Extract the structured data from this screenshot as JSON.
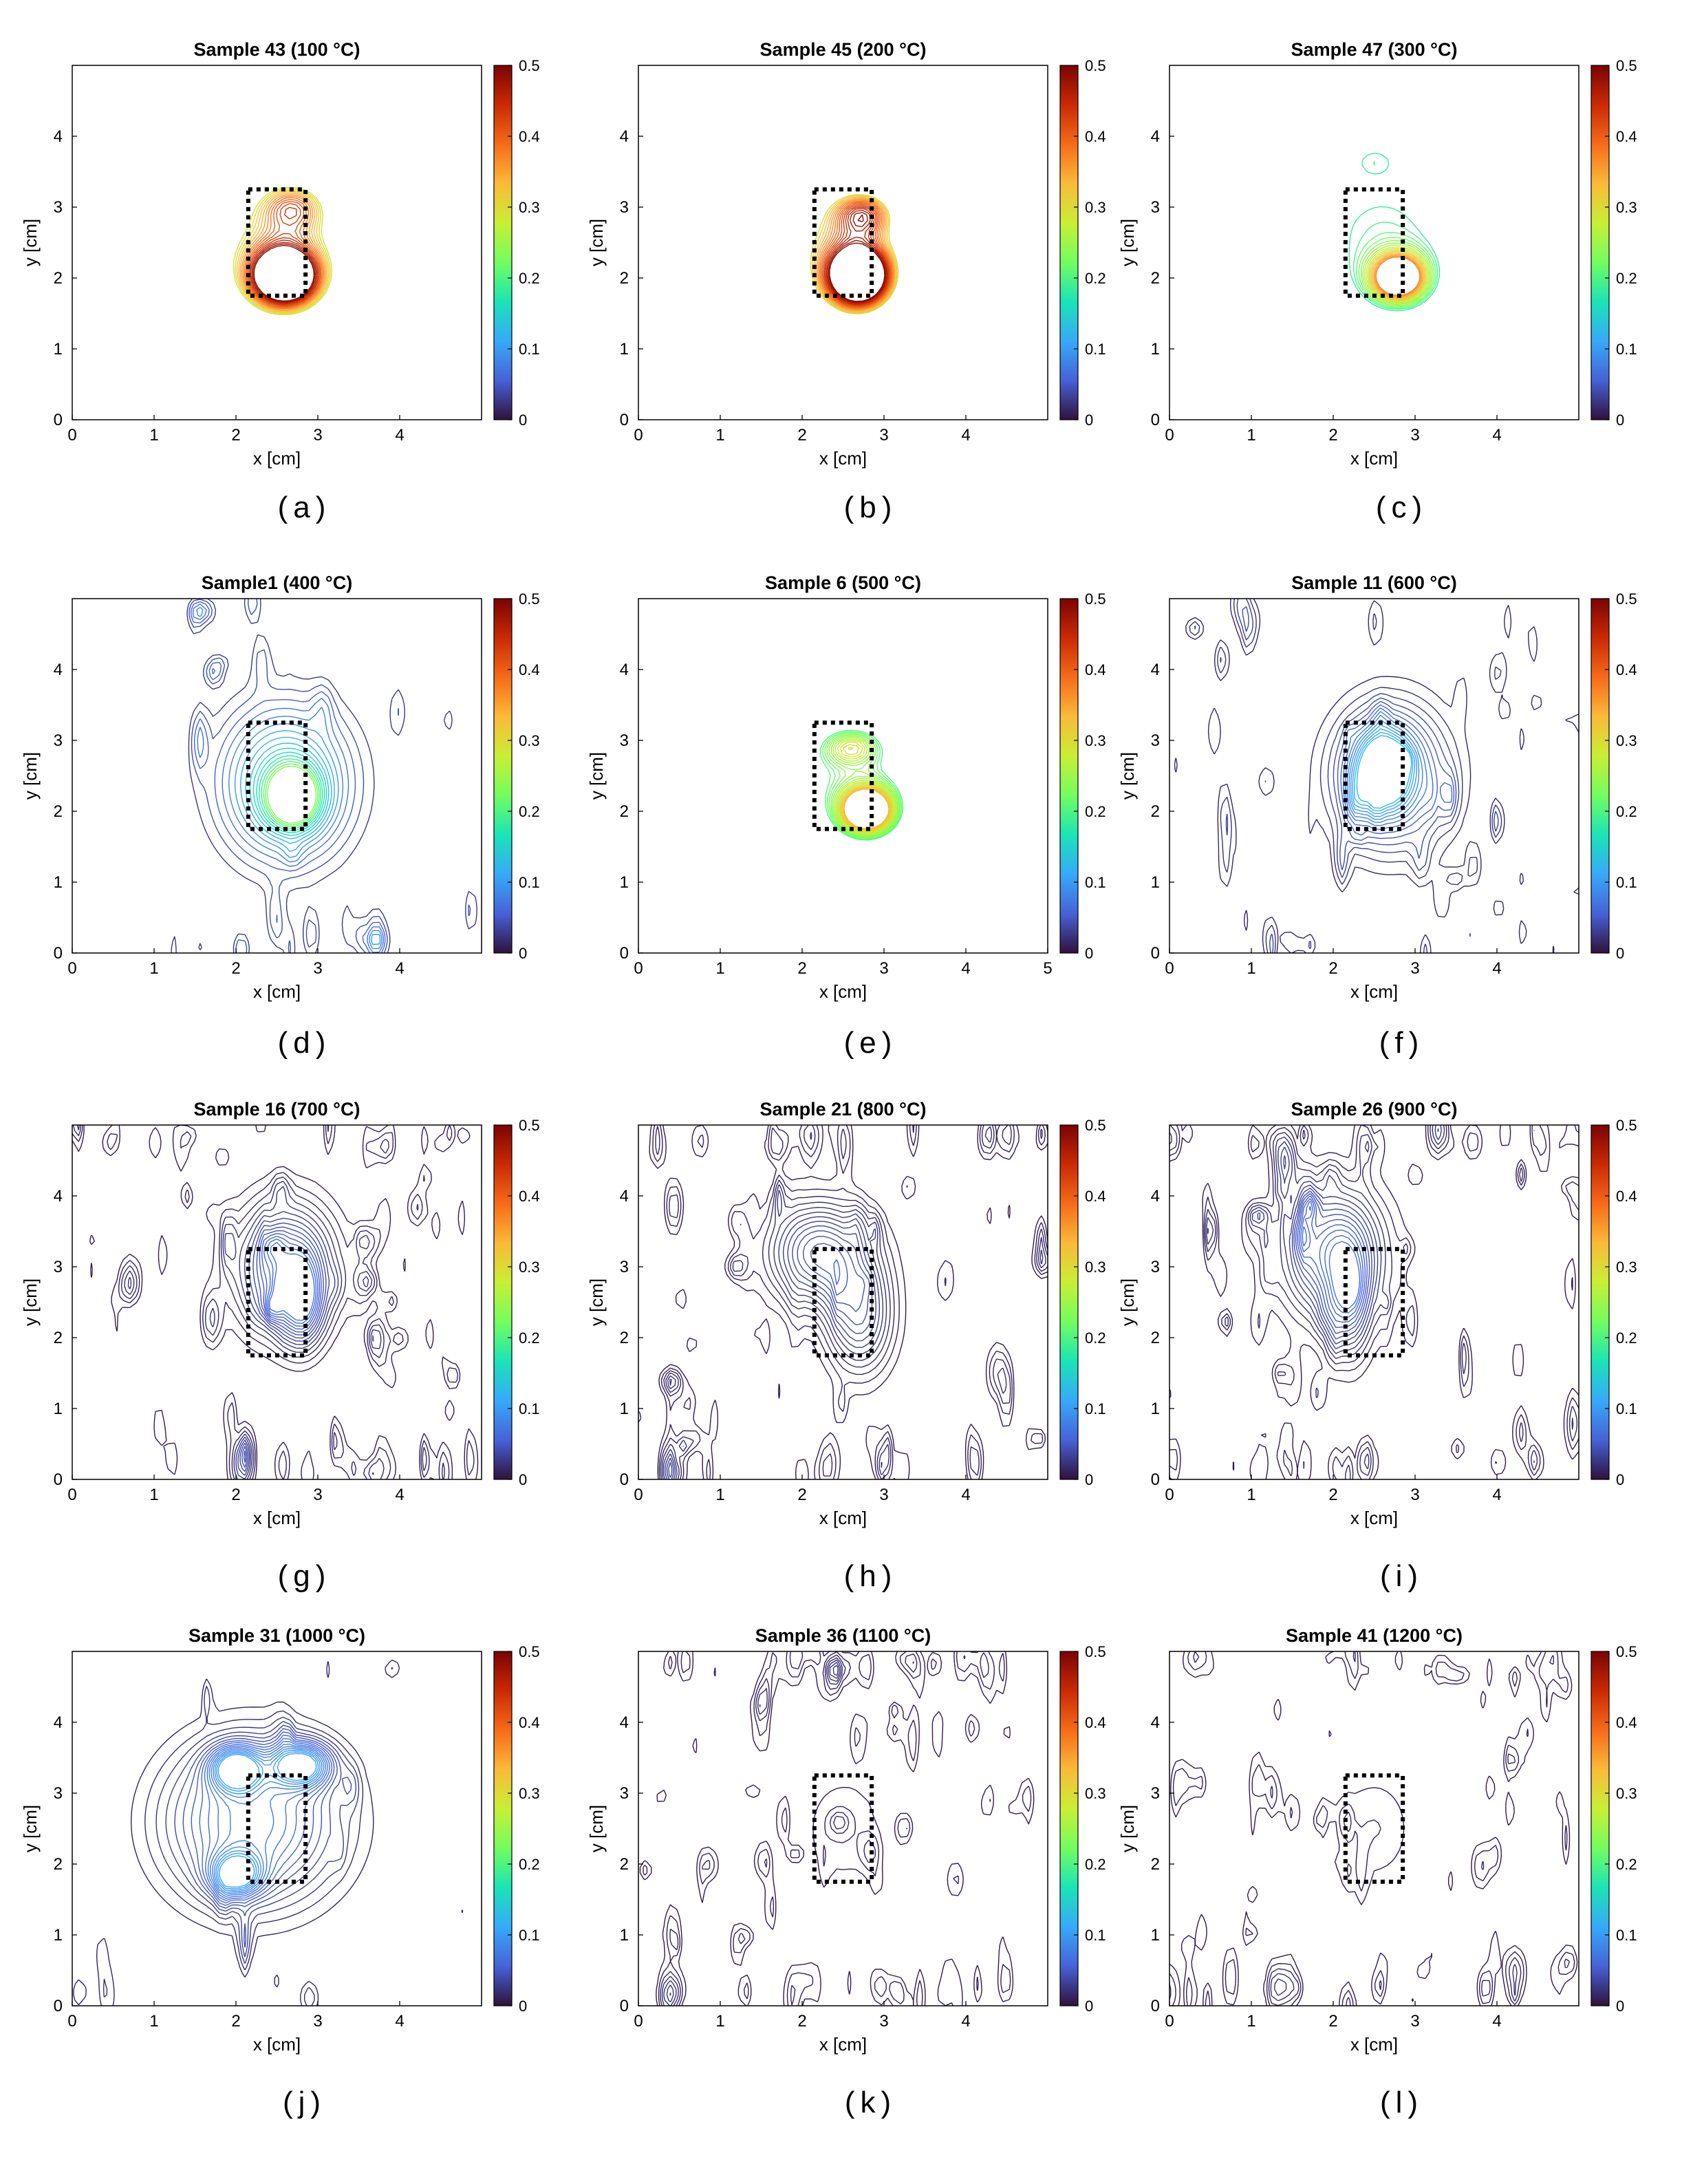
{
  "figure": {
    "colorbar_ticks": [
      "0.5",
      "0.4",
      "0.3",
      "0.2",
      "0.1",
      "0"
    ],
    "colormap_name": "turbo",
    "colormap": [
      "#30123b",
      "#4662d7",
      "#36aaf9",
      "#1ae4b6",
      "#72fe5e",
      "#c8ef34",
      "#faba39",
      "#f66b19",
      "#ca2a04",
      "#7a0403"
    ],
    "frame_color": "#000000",
    "marker_color": "#000000"
  },
  "chart_data": [
    {
      "type": "contour",
      "panel": "(a)",
      "title": "Sample 43 (100 °C)",
      "xlabel": "x [cm]",
      "ylabel": "y [cm]",
      "xlim": [
        0,
        5
      ],
      "ylim": [
        0,
        5
      ],
      "x_ticks": [
        "0",
        "1",
        "2",
        "3",
        "4"
      ],
      "y_ticks": [
        "0",
        "1",
        "2",
        "3",
        "4"
      ],
      "clim": [
        0,
        0.5
      ],
      "sample_box": {
        "x": [
          2.15,
          2.85
        ],
        "y": [
          1.75,
          3.25
        ]
      },
      "features": [
        {
          "x": 2.5,
          "y": 2.45,
          "sx": 1.1,
          "sy": 1.2,
          "v": 0.3
        },
        {
          "x": 2.7,
          "y": 3.0,
          "sx": 0.4,
          "sy": 0.35,
          "v": 0.2
        },
        {
          "x": 2.6,
          "y": 2.0,
          "sx": 0.45,
          "sy": 0.45,
          "v": 0.5
        }
      ],
      "level_min": 0.28,
      "level_max": 0.5,
      "contour_levels": 16,
      "noise": 0.0
    },
    {
      "type": "contour",
      "panel": "(b)",
      "title": "Sample 45 (200 °C)",
      "xlabel": "x [cm]",
      "ylabel": "y [cm]",
      "xlim": [
        0,
        5
      ],
      "ylim": [
        0,
        5
      ],
      "x_ticks": [
        "0",
        "1",
        "2",
        "3",
        "4"
      ],
      "y_ticks": [
        "0",
        "1",
        "2",
        "3",
        "4"
      ],
      "clim": [
        0,
        0.5
      ],
      "sample_box": {
        "x": [
          2.15,
          2.85
        ],
        "y": [
          1.75,
          3.25
        ]
      },
      "features": [
        {
          "x": 2.5,
          "y": 2.45,
          "sx": 1.0,
          "sy": 1.2,
          "v": 0.32
        },
        {
          "x": 2.75,
          "y": 2.9,
          "sx": 0.35,
          "sy": 0.3,
          "v": 0.22
        },
        {
          "x": 2.7,
          "y": 2.0,
          "sx": 0.4,
          "sy": 0.45,
          "v": 0.5
        }
      ],
      "level_min": 0.3,
      "level_max": 0.5,
      "contour_levels": 16,
      "noise": 0.0
    },
    {
      "type": "contour",
      "panel": "(c)",
      "title": "Sample 47 (300 °C)",
      "xlabel": "x [cm]",
      "ylabel": "y [cm]",
      "xlim": [
        0,
        5
      ],
      "ylim": [
        0,
        5
      ],
      "x_ticks": [
        "0",
        "1",
        "2",
        "3",
        "4"
      ],
      "y_ticks": [
        "0",
        "1",
        "2",
        "3",
        "4"
      ],
      "clim": [
        0,
        0.5
      ],
      "sample_box": {
        "x": [
          2.15,
          2.85
        ],
        "y": [
          1.75,
          3.25
        ]
      },
      "features": [
        {
          "x": 2.6,
          "y": 2.6,
          "sx": 1.4,
          "sy": 1.5,
          "v": 0.2
        },
        {
          "x": 2.5,
          "y": 3.7,
          "sx": 0.4,
          "sy": 0.3,
          "v": 0.08
        },
        {
          "x": 2.8,
          "y": 2.0,
          "sx": 0.35,
          "sy": 0.35,
          "v": 0.38
        }
      ],
      "level_min": 0.18,
      "level_max": 0.38,
      "contour_levels": 16,
      "noise": 0.0
    },
    {
      "type": "contour",
      "panel": "(d)",
      "title": "Sample1 (400 °C)",
      "xlabel": "x [cm]",
      "ylabel": "y [cm]",
      "xlim": [
        0,
        5
      ],
      "ylim": [
        0,
        5
      ],
      "x_ticks": [
        "0",
        "1",
        "2",
        "3",
        "4"
      ],
      "y_ticks": [
        "0",
        "1",
        "2",
        "3",
        "4"
      ],
      "clim": [
        0,
        0.5
      ],
      "sample_box": {
        "x": [
          2.15,
          2.85
        ],
        "y": [
          1.75,
          3.25
        ]
      },
      "features": [
        {
          "x": 2.6,
          "y": 2.4,
          "sx": 0.8,
          "sy": 1.1,
          "v": 0.17
        },
        {
          "x": 2.7,
          "y": 2.2,
          "sx": 0.3,
          "sy": 0.4,
          "v": 0.24
        }
      ],
      "level_min": 0.02,
      "level_max": 0.24,
      "contour_levels": 16,
      "noise": 0.25
    },
    {
      "type": "contour",
      "panel": "(e)",
      "title": "Sample 6 (500 °C)",
      "xlabel": "x [cm]",
      "ylabel": "y [cm]",
      "xlim": [
        0,
        5
      ],
      "ylim": [
        0,
        5
      ],
      "x_ticks": [
        "0",
        "1",
        "2",
        "3",
        "4",
        "5"
      ],
      "y_ticks": [
        "0",
        "1",
        "2",
        "3",
        "4"
      ],
      "clim": [
        0,
        0.5
      ],
      "sample_box": {
        "x": [
          2.15,
          2.85
        ],
        "y": [
          1.75,
          3.25
        ]
      },
      "features": [
        {
          "x": 2.6,
          "y": 2.5,
          "sx": 1.2,
          "sy": 1.3,
          "v": 0.2
        },
        {
          "x": 2.6,
          "y": 2.9,
          "sx": 0.35,
          "sy": 0.25,
          "v": 0.12
        },
        {
          "x": 2.8,
          "y": 2.0,
          "sx": 0.35,
          "sy": 0.35,
          "v": 0.32
        }
      ],
      "level_min": 0.2,
      "level_max": 0.34,
      "contour_levels": 16,
      "noise": 0.05
    },
    {
      "type": "contour",
      "panel": "(f)",
      "title": "Sample 11 (600 °C)",
      "xlabel": "x [cm]",
      "ylabel": "y [cm]",
      "xlim": [
        0,
        5
      ],
      "ylim": [
        0,
        5
      ],
      "x_ticks": [
        "0",
        "1",
        "2",
        "3",
        "4"
      ],
      "y_ticks": [
        "0",
        "1",
        "2",
        "3",
        "4"
      ],
      "clim": [
        0,
        0.5
      ],
      "sample_box": {
        "x": [
          2.15,
          2.85
        ],
        "y": [
          1.75,
          3.25
        ]
      },
      "features": [
        {
          "x": 2.7,
          "y": 2.5,
          "sx": 0.7,
          "sy": 1.0,
          "v": 0.1
        },
        {
          "x": 2.6,
          "y": 2.6,
          "sx": 0.3,
          "sy": 0.5,
          "v": 0.12
        }
      ],
      "level_min": 0.01,
      "level_max": 0.13,
      "contour_levels": 14,
      "noise": 0.45
    },
    {
      "type": "contour",
      "panel": "(g)",
      "title": "Sample 16 (700 °C)",
      "xlabel": "x [cm]",
      "ylabel": "y [cm]",
      "xlim": [
        0,
        5
      ],
      "ylim": [
        0,
        5
      ],
      "x_ticks": [
        "0",
        "1",
        "2",
        "3",
        "4"
      ],
      "y_ticks": [
        "0",
        "1",
        "2",
        "3",
        "4"
      ],
      "clim": [
        0,
        0.5
      ],
      "sample_box": {
        "x": [
          2.15,
          2.85
        ],
        "y": [
          1.75,
          3.25
        ]
      },
      "features": [
        {
          "x": 2.6,
          "y": 3.0,
          "sx": 0.6,
          "sy": 0.9,
          "v": 0.06
        },
        {
          "x": 2.8,
          "y": 2.5,
          "sx": 0.25,
          "sy": 0.6,
          "v": 0.05
        }
      ],
      "level_min": 0.005,
      "level_max": 0.07,
      "contour_levels": 14,
      "noise": 0.7
    },
    {
      "type": "contour",
      "panel": "(h)",
      "title": "Sample 21 (800 °C)",
      "xlabel": "x [cm]",
      "ylabel": "y [cm]",
      "xlim": [
        0,
        5
      ],
      "ylim": [
        0,
        5
      ],
      "x_ticks": [
        "0",
        "1",
        "2",
        "3",
        "4"
      ],
      "y_ticks": [
        "0",
        "1",
        "2",
        "3",
        "4"
      ],
      "clim": [
        0,
        0.5
      ],
      "sample_box": {
        "x": [
          2.15,
          2.85
        ],
        "y": [
          1.75,
          3.25
        ]
      },
      "features": [
        {
          "x": 2.2,
          "y": 3.2,
          "sx": 0.6,
          "sy": 0.7,
          "v": 0.05
        },
        {
          "x": 2.7,
          "y": 2.3,
          "sx": 0.4,
          "sy": 0.8,
          "v": 0.04
        }
      ],
      "level_min": 0.004,
      "level_max": 0.06,
      "contour_levels": 14,
      "noise": 0.7
    },
    {
      "type": "contour",
      "panel": "(i)",
      "title": "Sample 26 (900 °C)",
      "xlabel": "x [cm]",
      "ylabel": "y [cm]",
      "xlim": [
        0,
        5
      ],
      "ylim": [
        0,
        5
      ],
      "x_ticks": [
        "0",
        "1",
        "2",
        "3",
        "4"
      ],
      "y_ticks": [
        "0",
        "1",
        "2",
        "3",
        "4"
      ],
      "clim": [
        0,
        0.5
      ],
      "sample_box": {
        "x": [
          2.15,
          2.85
        ],
        "y": [
          1.75,
          3.25
        ]
      },
      "features": [
        {
          "x": 2.0,
          "y": 3.2,
          "sx": 0.6,
          "sy": 0.9,
          "v": 0.06
        },
        {
          "x": 2.2,
          "y": 2.5,
          "sx": 0.25,
          "sy": 0.8,
          "v": 0.04
        }
      ],
      "level_min": 0.004,
      "level_max": 0.07,
      "contour_levels": 14,
      "noise": 0.7
    },
    {
      "type": "contour",
      "panel": "(j)",
      "title": "Sample 31 (1000 °C)",
      "xlabel": "x [cm]",
      "ylabel": "y [cm]",
      "xlim": [
        0,
        5
      ],
      "ylim": [
        0,
        5
      ],
      "x_ticks": [
        "0",
        "1",
        "2",
        "3",
        "4"
      ],
      "y_ticks": [
        "0",
        "1",
        "2",
        "3",
        "4"
      ],
      "clim": [
        0,
        0.5
      ],
      "sample_box": {
        "x": [
          2.15,
          2.85
        ],
        "y": [
          1.75,
          3.25
        ]
      },
      "features": [
        {
          "x": 2.2,
          "y": 2.6,
          "sx": 1.1,
          "sy": 1.2,
          "v": 0.08
        },
        {
          "x": 2.0,
          "y": 3.35,
          "sx": 0.3,
          "sy": 0.3,
          "v": 0.1
        },
        {
          "x": 2.0,
          "y": 1.85,
          "sx": 0.3,
          "sy": 0.3,
          "v": 0.09
        },
        {
          "x": 2.8,
          "y": 3.4,
          "sx": 0.35,
          "sy": 0.3,
          "v": 0.1
        }
      ],
      "level_min": 0.01,
      "level_max": 0.11,
      "contour_levels": 16,
      "noise": 0.15
    },
    {
      "type": "contour",
      "panel": "(k)",
      "title": "Sample 36 (1100 °C)",
      "xlabel": "x [cm]",
      "ylabel": "y [cm]",
      "xlim": [
        0,
        5
      ],
      "ylim": [
        0,
        5
      ],
      "x_ticks": [
        "0",
        "1",
        "2",
        "3",
        "4"
      ],
      "y_ticks": [
        "0",
        "1",
        "2",
        "3",
        "4"
      ],
      "clim": [
        0,
        0.5
      ],
      "sample_box": {
        "x": [
          2.15,
          2.85
        ],
        "y": [
          1.75,
          3.25
        ]
      },
      "features": [
        {
          "x": 2.5,
          "y": 2.5,
          "sx": 0.5,
          "sy": 0.8,
          "v": 0.01
        }
      ],
      "level_min": 0.004,
      "level_max": 0.05,
      "contour_levels": 12,
      "noise": 0.9
    },
    {
      "type": "contour",
      "panel": "(l)",
      "title": "Sample 41 (1200 °C)",
      "xlabel": "x [cm]",
      "ylabel": "y [cm]",
      "xlim": [
        0,
        5
      ],
      "ylim": [
        0,
        5
      ],
      "x_ticks": [
        "0",
        "1",
        "2",
        "3",
        "4"
      ],
      "y_ticks": [
        "0",
        "1",
        "2",
        "3",
        "4"
      ],
      "clim": [
        0,
        0.5
      ],
      "sample_box": {
        "x": [
          2.15,
          2.85
        ],
        "y": [
          1.75,
          3.25
        ]
      },
      "features": [
        {
          "x": 2.5,
          "y": 2.5,
          "sx": 0.5,
          "sy": 0.8,
          "v": 0.01
        }
      ],
      "level_min": 0.004,
      "level_max": 0.05,
      "contour_levels": 12,
      "noise": 0.9
    }
  ]
}
